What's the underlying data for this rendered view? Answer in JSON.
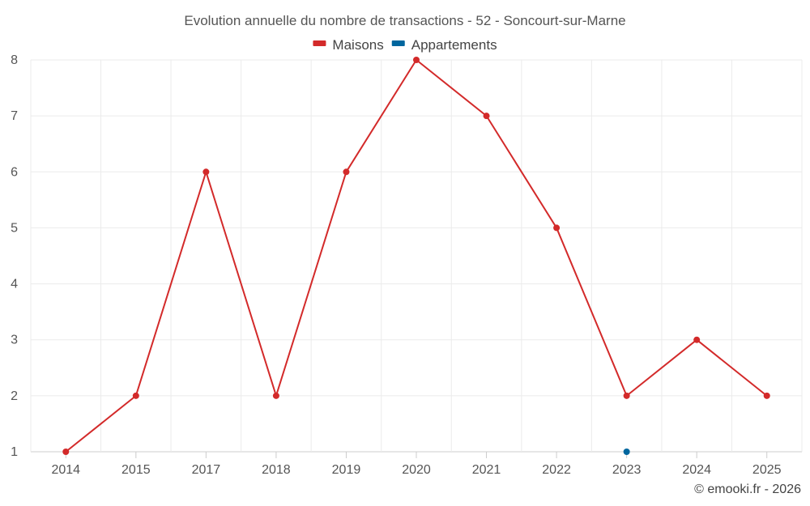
{
  "chart_data": {
    "type": "line",
    "title": "Evolution annuelle du nombre de transactions - 52 - Soncourt-sur-Marne",
    "categories": [
      "2014",
      "2015",
      "2017",
      "2018",
      "2019",
      "2020",
      "2021",
      "2022",
      "2023",
      "2024",
      "2025"
    ],
    "series": [
      {
        "name": "Maisons",
        "color": "#d32a2a",
        "values": [
          1,
          2,
          6,
          2,
          6,
          8,
          7,
          5,
          2,
          3,
          2
        ]
      },
      {
        "name": "Appartements",
        "color": "#00669e",
        "values": [
          null,
          null,
          null,
          null,
          null,
          null,
          null,
          null,
          1,
          null,
          null
        ]
      }
    ],
    "y_ticks": [
      1,
      2,
      3,
      4,
      5,
      6,
      7,
      8
    ],
    "ylim": [
      1,
      8
    ],
    "xlabel": "",
    "ylabel": "",
    "grid": true,
    "legend": "top-center",
    "credit": "© emooki.fr - 2026"
  }
}
